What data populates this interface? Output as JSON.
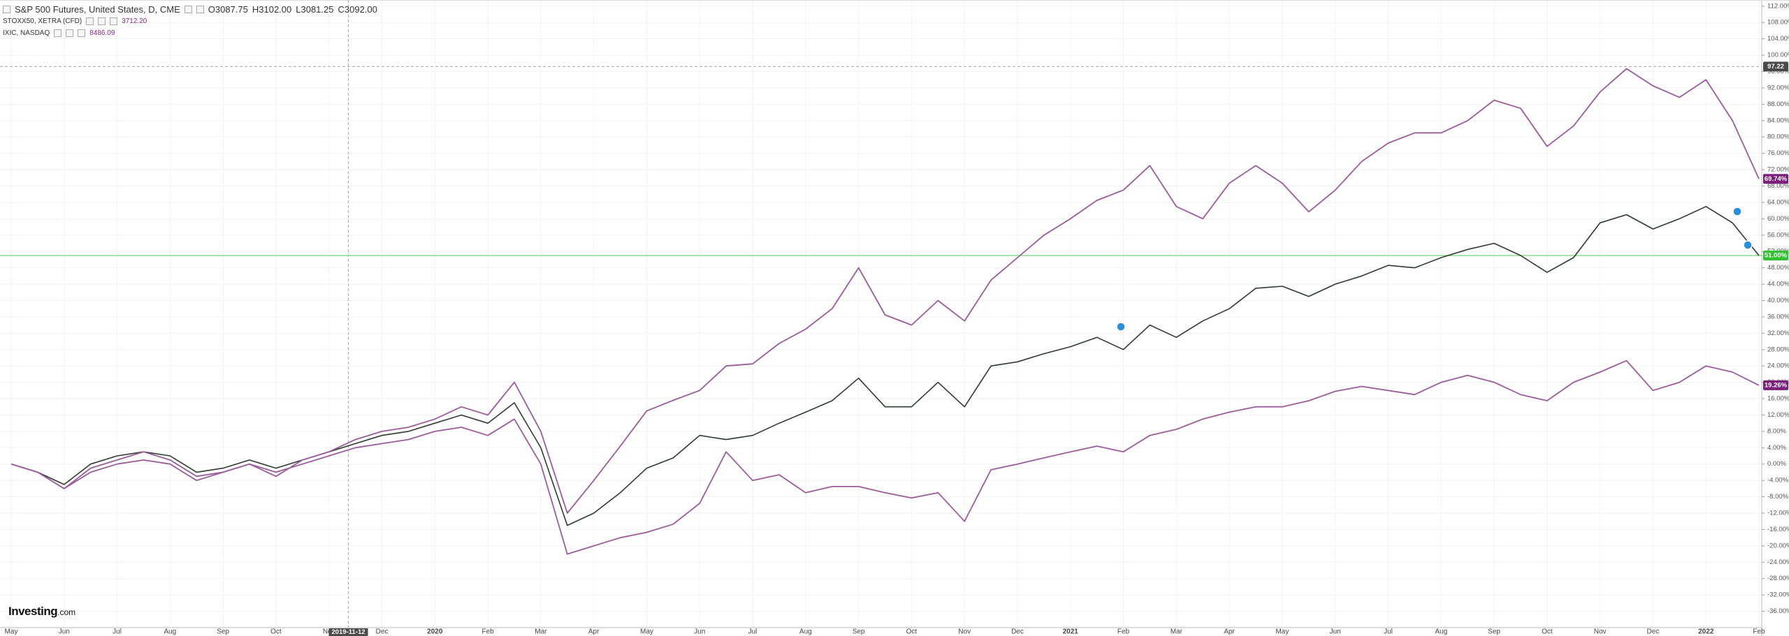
{
  "chart_data": {
    "type": "line",
    "categories": [
      "May",
      null,
      "Jun",
      null,
      "Jul",
      null,
      "Aug",
      null,
      "Sep",
      null,
      "Oct",
      null,
      "Nov",
      null,
      "Dec",
      null,
      "2020",
      null,
      "Feb",
      null,
      "Mar",
      null,
      "Apr",
      null,
      "May",
      null,
      "Jun",
      null,
      "Jul",
      null,
      "Aug",
      null,
      "Sep",
      null,
      "Oct",
      null,
      "Nov",
      null,
      "Dec",
      null,
      "2021",
      null,
      "Feb",
      null,
      "Mar",
      null,
      "Apr",
      null,
      "May",
      null,
      "Jun",
      null,
      "Jul",
      null,
      "Aug",
      null,
      "Sep",
      null,
      "Oct",
      null,
      "Nov",
      null,
      "Dec",
      null,
      "2022",
      null,
      "Feb"
    ],
    "series": [
      {
        "name": "S&P 500 Futures, United States, D, CME",
        "ohlc": [
          "O3087.75",
          "H3102.00",
          "L3081.25",
          "C3092.00"
        ],
        "color": "#2f3b2f",
        "price_line_color": "#7ed87e",
        "badge_color": "#31c231",
        "last_label": "51.00%",
        "values": [
          0,
          -2,
          -5,
          0,
          2,
          3,
          2,
          -2,
          -1,
          1,
          -1,
          1,
          3,
          5,
          7,
          8,
          10,
          12,
          10,
          15,
          4,
          -15,
          -12,
          -7,
          -1,
          1.5,
          7,
          6,
          7,
          10,
          12.7,
          15.5,
          21,
          14,
          14,
          20,
          14,
          24,
          25,
          27,
          28.7,
          31,
          28,
          34,
          31,
          35,
          38,
          43,
          43.5,
          41,
          44,
          46,
          48.6,
          48,
          50.5,
          52.5,
          54,
          51,
          46.9,
          50.5,
          59,
          61,
          57.5,
          60,
          63,
          59,
          51
        ]
      },
      {
        "name": "STOXX50, XETRA (CFD)",
        "quote": "3712.20",
        "color": "#9b5c9b",
        "badge_color": "#7b1f7b",
        "last_label": "19.26%",
        "values": [
          0,
          -2,
          -6,
          -2,
          0,
          1,
          0,
          -4,
          -2,
          0,
          -2,
          0,
          2,
          4,
          5,
          6,
          8,
          9,
          7,
          11,
          0,
          -22,
          -20,
          -18,
          -16.7,
          -14.7,
          -9.6,
          3,
          -4,
          -2.6,
          -7,
          -5.5,
          -5.5,
          -7,
          -8.3,
          -7,
          -14,
          -1.4,
          0,
          1.5,
          3,
          4.4,
          3,
          7,
          8.5,
          11,
          12.7,
          14,
          14,
          15.5,
          17.8,
          19,
          18,
          17,
          20,
          21.7,
          20,
          17,
          15.5,
          20,
          22.5,
          25.3,
          18,
          20,
          24,
          22.5,
          19.26
        ]
      },
      {
        "name": "IXIC, NASDAQ",
        "quote": "8486.09",
        "color": "#9b5c9b",
        "badge_color": "#7b1f7b",
        "last_label": "69.74%",
        "values": [
          0,
          -2,
          -6,
          -1,
          1,
          3,
          1,
          -3,
          -2,
          0,
          -3,
          1,
          3,
          6,
          8,
          9,
          11,
          14,
          12,
          20,
          8,
          -12,
          -4,
          4.4,
          13,
          15.6,
          18,
          24,
          24.5,
          29.5,
          33,
          38,
          48,
          36.5,
          34,
          40,
          35,
          45,
          50.5,
          56,
          60,
          64.5,
          67,
          73,
          63,
          60,
          68.7,
          73,
          68.7,
          61.7,
          67,
          74,
          78.5,
          81,
          81,
          84,
          89,
          87,
          77.7,
          82.7,
          91,
          96.7,
          92.5,
          89.7,
          94,
          84,
          69.74
        ]
      }
    ],
    "ylim": [
      -40,
      113.5
    ],
    "yticks": [
      {
        "value": 112,
        "label": "112.00%"
      },
      {
        "value": 108,
        "label": "108.00%"
      },
      {
        "value": 104,
        "label": "104.00%"
      },
      {
        "value": 100,
        "label": "100.00%"
      },
      {
        "value": 96,
        "label": "96.00%"
      },
      {
        "value": 92,
        "label": "92.00%"
      },
      {
        "value": 88,
        "label": "88.00%"
      },
      {
        "value": 84,
        "label": "84.00%"
      },
      {
        "value": 80,
        "label": "80.00%"
      },
      {
        "value": 76,
        "label": "76.00%"
      },
      {
        "value": 72,
        "label": "72.00%"
      },
      {
        "value": 68,
        "label": "68.00%"
      },
      {
        "value": 64,
        "label": "64.00%"
      },
      {
        "value": 60,
        "label": "60.00%"
      },
      {
        "value": 56,
        "label": "56.00%"
      },
      {
        "value": 52,
        "label": "52.00%"
      },
      {
        "value": 48,
        "label": "48.00%"
      },
      {
        "value": 44,
        "label": "44.00%"
      },
      {
        "value": 40,
        "label": "40.00%"
      },
      {
        "value": 36,
        "label": "36.00%"
      },
      {
        "value": 32,
        "label": "32.00%"
      },
      {
        "value": 28,
        "label": "28.00%"
      },
      {
        "value": 24,
        "label": "24.00%"
      },
      {
        "value": 20,
        "label": "20.00%"
      },
      {
        "value": 16,
        "label": "16.00%"
      },
      {
        "value": 12,
        "label": "12.00%"
      },
      {
        "value": 8,
        "label": "8.00%"
      },
      {
        "value": 4,
        "label": "4.00%"
      },
      {
        "value": 0,
        "label": "0.00%"
      },
      {
        "value": -4,
        "label": "-4.00%"
      },
      {
        "value": -8,
        "label": "-8.00%"
      },
      {
        "value": -12,
        "label": "-12.00%"
      },
      {
        "value": -16,
        "label": "-16.00%"
      },
      {
        "value": -20,
        "label": "-20.00%"
      },
      {
        "value": -24,
        "label": "-24.00%"
      },
      {
        "value": -28,
        "label": "-28.00%"
      },
      {
        "value": -32,
        "label": "-32.00%"
      },
      {
        "value": -36,
        "label": "-36.00%"
      }
    ],
    "grid": true,
    "crosshair": {
      "value": 97.22,
      "label": "97.22",
      "date": "2019-11-12"
    },
    "watermark": [
      "Investing",
      ".com"
    ]
  }
}
